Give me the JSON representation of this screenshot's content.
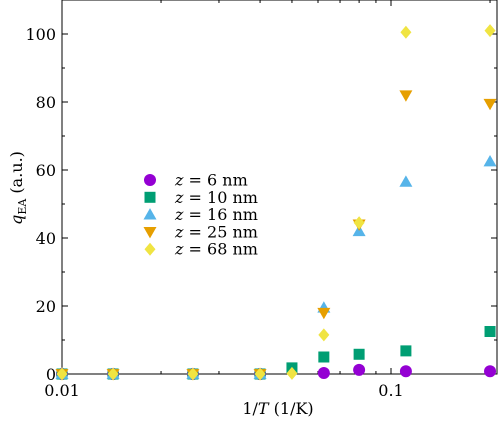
{
  "chart_data": {
    "type": "scatter",
    "xscale": "log",
    "xlim": [
      0.01,
      0.21
    ],
    "ylim": [
      0,
      110
    ],
    "xticks": [
      0.01,
      0.1
    ],
    "xtick_labels": [
      "0.01",
      "0.1"
    ],
    "yticks": [
      0,
      20,
      40,
      60,
      80,
      100
    ],
    "ytick_labels": [
      "0",
      "20",
      "40",
      "60",
      "80",
      "100"
    ],
    "xlabel": "1/T (1/K)",
    "ylabel": "q_EA (a.u.)",
    "legend_position": "center-left",
    "grid": false,
    "series": [
      {
        "name": "z = 6 nm",
        "marker": "circle",
        "color": "#9400D3",
        "points": [
          [
            0.01,
            0
          ],
          [
            0.0143,
            0
          ],
          [
            0.025,
            0
          ],
          [
            0.04,
            0
          ],
          [
            0.0625,
            0.3
          ],
          [
            0.08,
            1.2
          ],
          [
            0.111,
            0.8
          ],
          [
            0.2,
            0.8
          ]
        ]
      },
      {
        "name": "z = 10 nm",
        "marker": "square",
        "color": "#009E73",
        "points": [
          [
            0.01,
            0
          ],
          [
            0.0143,
            0
          ],
          [
            0.025,
            0
          ],
          [
            0.04,
            0
          ],
          [
            0.05,
            1.8
          ],
          [
            0.0625,
            5
          ],
          [
            0.08,
            5.8
          ],
          [
            0.111,
            6.8
          ],
          [
            0.2,
            12.5
          ]
        ]
      },
      {
        "name": "z = 16 nm",
        "marker": "triangle-up",
        "color": "#56B4E9",
        "points": [
          [
            0.01,
            0
          ],
          [
            0.0143,
            0
          ],
          [
            0.025,
            0
          ],
          [
            0.04,
            0
          ],
          [
            0.0625,
            19.5
          ],
          [
            0.08,
            42
          ],
          [
            0.111,
            56.5
          ],
          [
            0.2,
            62.5
          ]
        ]
      },
      {
        "name": "z = 25 nm",
        "marker": "triangle-down",
        "color": "#E69F00",
        "points": [
          [
            0.01,
            0
          ],
          [
            0.0143,
            0
          ],
          [
            0.025,
            0
          ],
          [
            0.04,
            0
          ],
          [
            0.0625,
            18
          ],
          [
            0.08,
            44
          ],
          [
            0.111,
            82
          ],
          [
            0.2,
            79.5
          ]
        ]
      },
      {
        "name": "z = 68 nm",
        "marker": "diamond",
        "color": "#F0E442",
        "points": [
          [
            0.01,
            0
          ],
          [
            0.0143,
            0
          ],
          [
            0.025,
            0
          ],
          [
            0.04,
            0
          ],
          [
            0.05,
            0.2
          ],
          [
            0.0625,
            11.5
          ],
          [
            0.08,
            44.5
          ],
          [
            0.111,
            100.5
          ],
          [
            0.2,
            101
          ]
        ]
      }
    ]
  },
  "legend": {
    "z_var": "z",
    "equals": "=",
    "entries": [
      {
        "value": "6 nm"
      },
      {
        "value": "10 nm"
      },
      {
        "value": "16 nm"
      },
      {
        "value": "25 nm"
      },
      {
        "value": "68 nm"
      }
    ]
  },
  "axis_text": {
    "x_prefix": "1/",
    "x_var": "T",
    "x_suffix": " (1/K)",
    "y_var": "q",
    "y_sub": "EA",
    "y_suffix": " (a.u.)"
  }
}
